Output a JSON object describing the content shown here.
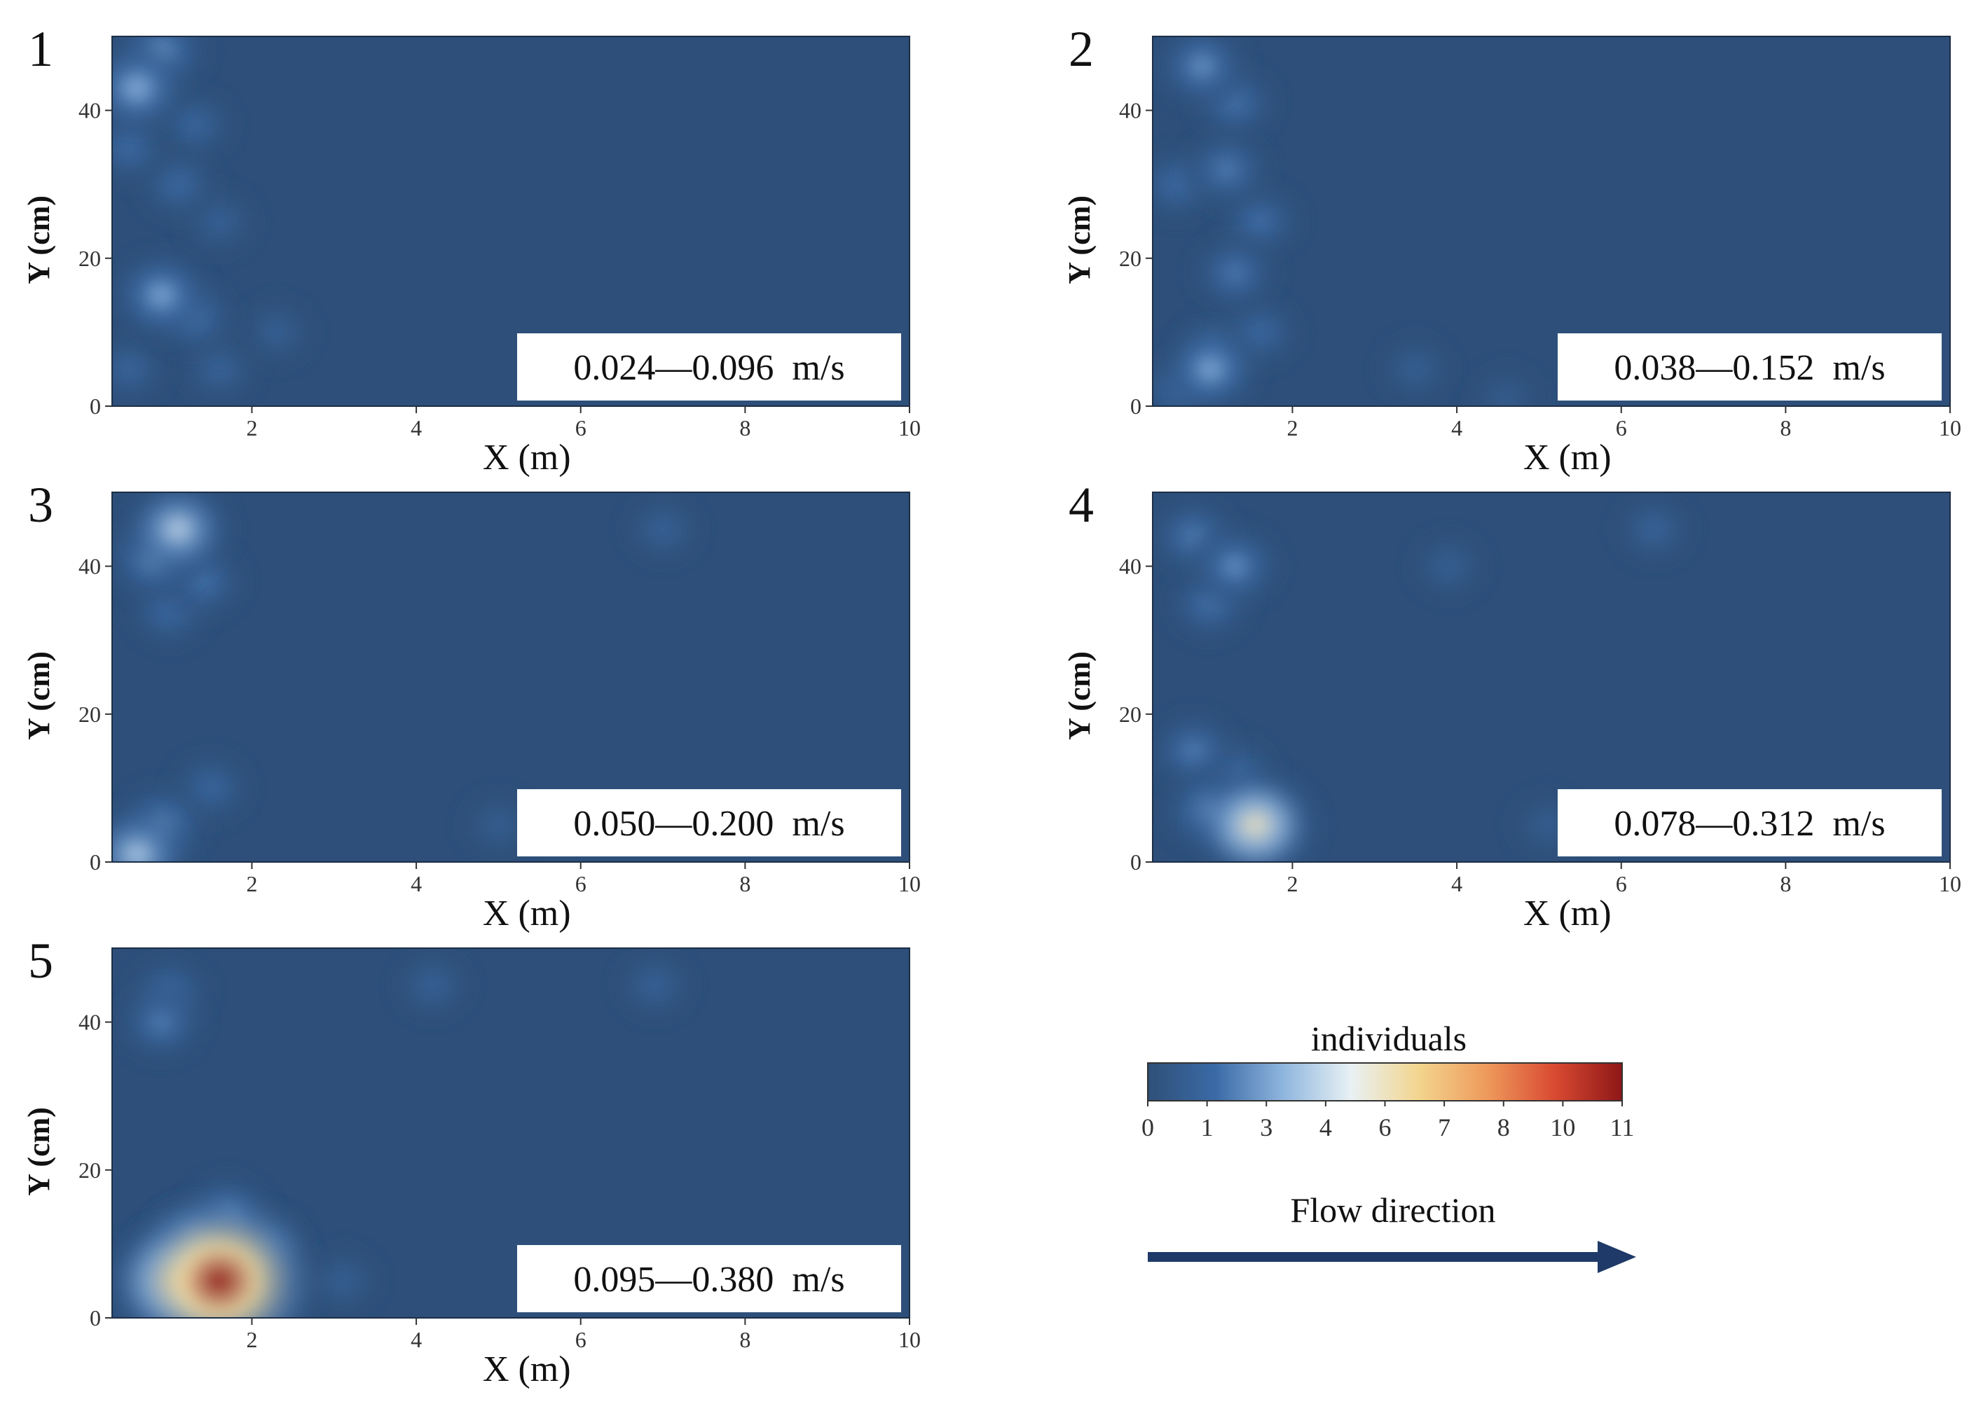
{
  "chart_data": [
    {
      "type": "heatmap",
      "panel_label": "1",
      "speed_range": "0.024—0.096  m/s",
      "xlabel": "X (m)",
      "ylabel": "Y (cm)",
      "xlim": [
        0.3,
        10
      ],
      "ylim": [
        0,
        50
      ],
      "xticks": [
        "2",
        "4",
        "6",
        "8",
        "10"
      ],
      "yticks": [
        "0",
        "20",
        "40"
      ],
      "hotspots": [
        {
          "x": 0.6,
          "y": 43,
          "value": 3.2
        },
        {
          "x": 0.9,
          "y": 48,
          "value": 2.5
        },
        {
          "x": 0.5,
          "y": 35,
          "value": 1.6
        },
        {
          "x": 1.3,
          "y": 38,
          "value": 1.4
        },
        {
          "x": 1.1,
          "y": 30,
          "value": 1.5
        },
        {
          "x": 1.6,
          "y": 25,
          "value": 1.1
        },
        {
          "x": 0.9,
          "y": 15,
          "value": 3.0
        },
        {
          "x": 1.3,
          "y": 12,
          "value": 1.8
        },
        {
          "x": 1.6,
          "y": 5,
          "value": 1.2
        },
        {
          "x": 2.3,
          "y": 10,
          "value": 1.0
        },
        {
          "x": 0.5,
          "y": 5,
          "value": 1.3
        }
      ]
    },
    {
      "type": "heatmap",
      "panel_label": "2",
      "speed_range": "0.038—0.152  m/s",
      "xlabel": "X (m)",
      "ylabel": "Y (cm)",
      "xlim": [
        0.3,
        10
      ],
      "ylim": [
        0,
        50
      ],
      "xticks": [
        "2",
        "4",
        "6",
        "8",
        "10"
      ],
      "yticks": [
        "0",
        "20",
        "40"
      ],
      "hotspots": [
        {
          "x": 0.9,
          "y": 46,
          "value": 2.5
        },
        {
          "x": 1.3,
          "y": 41,
          "value": 1.8
        },
        {
          "x": 0.6,
          "y": 30,
          "value": 1.6
        },
        {
          "x": 1.2,
          "y": 32,
          "value": 2.0
        },
        {
          "x": 1.6,
          "y": 25,
          "value": 1.7
        },
        {
          "x": 1.3,
          "y": 18,
          "value": 1.9
        },
        {
          "x": 1.1,
          "y": 8,
          "value": 1.5
        },
        {
          "x": 1.0,
          "y": 5,
          "value": 3.0
        },
        {
          "x": 0.6,
          "y": 2,
          "value": 1.4
        },
        {
          "x": 1.6,
          "y": 10,
          "value": 1.5
        },
        {
          "x": 3.5,
          "y": 5,
          "value": 1.0
        },
        {
          "x": 4.6,
          "y": 1,
          "value": 0.8
        }
      ]
    },
    {
      "type": "heatmap",
      "panel_label": "3",
      "speed_range": "0.050—0.200  m/s",
      "xlabel": "X (m)",
      "ylabel": "Y (cm)",
      "xlim": [
        0.3,
        10
      ],
      "ylim": [
        0,
        50
      ],
      "xticks": [
        "2",
        "4",
        "6",
        "8",
        "10"
      ],
      "yticks": [
        "0",
        "20",
        "40"
      ],
      "hotspots": [
        {
          "x": 1.1,
          "y": 45,
          "value": 4.0
        },
        {
          "x": 0.8,
          "y": 41,
          "value": 2.5
        },
        {
          "x": 1.4,
          "y": 38,
          "value": 1.8
        },
        {
          "x": 1.0,
          "y": 34,
          "value": 1.6
        },
        {
          "x": 7.0,
          "y": 45,
          "value": 1.1
        },
        {
          "x": 0.6,
          "y": 1,
          "value": 3.8
        },
        {
          "x": 0.9,
          "y": 5,
          "value": 2.4
        },
        {
          "x": 1.5,
          "y": 10,
          "value": 1.4
        },
        {
          "x": 5.0,
          "y": 5,
          "value": 0.9
        }
      ]
    },
    {
      "type": "heatmap",
      "panel_label": "4",
      "speed_range": "0.078—0.312  m/s",
      "xlabel": "X (m)",
      "ylabel": "Y (cm)",
      "xlim": [
        0.3,
        10
      ],
      "ylim": [
        0,
        50
      ],
      "xticks": [
        "2",
        "4",
        "6",
        "8",
        "10"
      ],
      "yticks": [
        "0",
        "20",
        "40"
      ],
      "hotspots": [
        {
          "x": 0.8,
          "y": 44,
          "value": 2.0
        },
        {
          "x": 1.3,
          "y": 40,
          "value": 2.4
        },
        {
          "x": 1.0,
          "y": 35,
          "value": 1.8
        },
        {
          "x": 3.9,
          "y": 40,
          "value": 1.0
        },
        {
          "x": 6.4,
          "y": 45,
          "value": 1.2
        },
        {
          "x": 1.55,
          "y": 5,
          "value": 5.5
        },
        {
          "x": 1.0,
          "y": 7,
          "value": 2.6
        },
        {
          "x": 0.8,
          "y": 15,
          "value": 2.0
        },
        {
          "x": 1.3,
          "y": 12,
          "value": 1.7
        },
        {
          "x": 5.1,
          "y": 5,
          "value": 0.9
        }
      ]
    },
    {
      "type": "heatmap",
      "panel_label": "5",
      "speed_range": "0.095—0.380  m/s",
      "xlabel": "X (m)",
      "ylabel": "Y (cm)",
      "xlim": [
        0.3,
        10
      ],
      "ylim": [
        0,
        50
      ],
      "xticks": [
        "2",
        "4",
        "6",
        "8",
        "10"
      ],
      "yticks": [
        "0",
        "20",
        "40"
      ],
      "hotspots": [
        {
          "x": 1.0,
          "y": 44,
          "value": 1.6
        },
        {
          "x": 0.9,
          "y": 40,
          "value": 2.0
        },
        {
          "x": 4.2,
          "y": 45,
          "value": 1.1
        },
        {
          "x": 6.9,
          "y": 45,
          "value": 1.1
        },
        {
          "x": 1.6,
          "y": 5,
          "value": 11.0
        },
        {
          "x": 1.05,
          "y": 5,
          "value": 6.0
        },
        {
          "x": 1.3,
          "y": 10,
          "value": 3.0
        },
        {
          "x": 1.7,
          "y": 14,
          "value": 2.2
        },
        {
          "x": 2.2,
          "y": 10,
          "value": 1.4
        },
        {
          "x": 3.1,
          "y": 5,
          "value": 1.0
        }
      ]
    }
  ],
  "colorbar": {
    "title": "individuals",
    "tick_labels": [
      "0",
      "1",
      "3",
      "4",
      "6",
      "7",
      "8",
      "10",
      "11"
    ],
    "stops": [
      "#2f5078",
      "#3a6aa6",
      "#8fb6de",
      "#e8f1f4",
      "#f3d58e",
      "#ee9a5c",
      "#d94a32",
      "#8e1717"
    ]
  },
  "flow": {
    "label": "Flow direction",
    "arrow_color": "#1f3a68"
  },
  "colors": {
    "background_field": "#2d4f7a",
    "label_box": "#ffffff",
    "text": "#111111"
  }
}
